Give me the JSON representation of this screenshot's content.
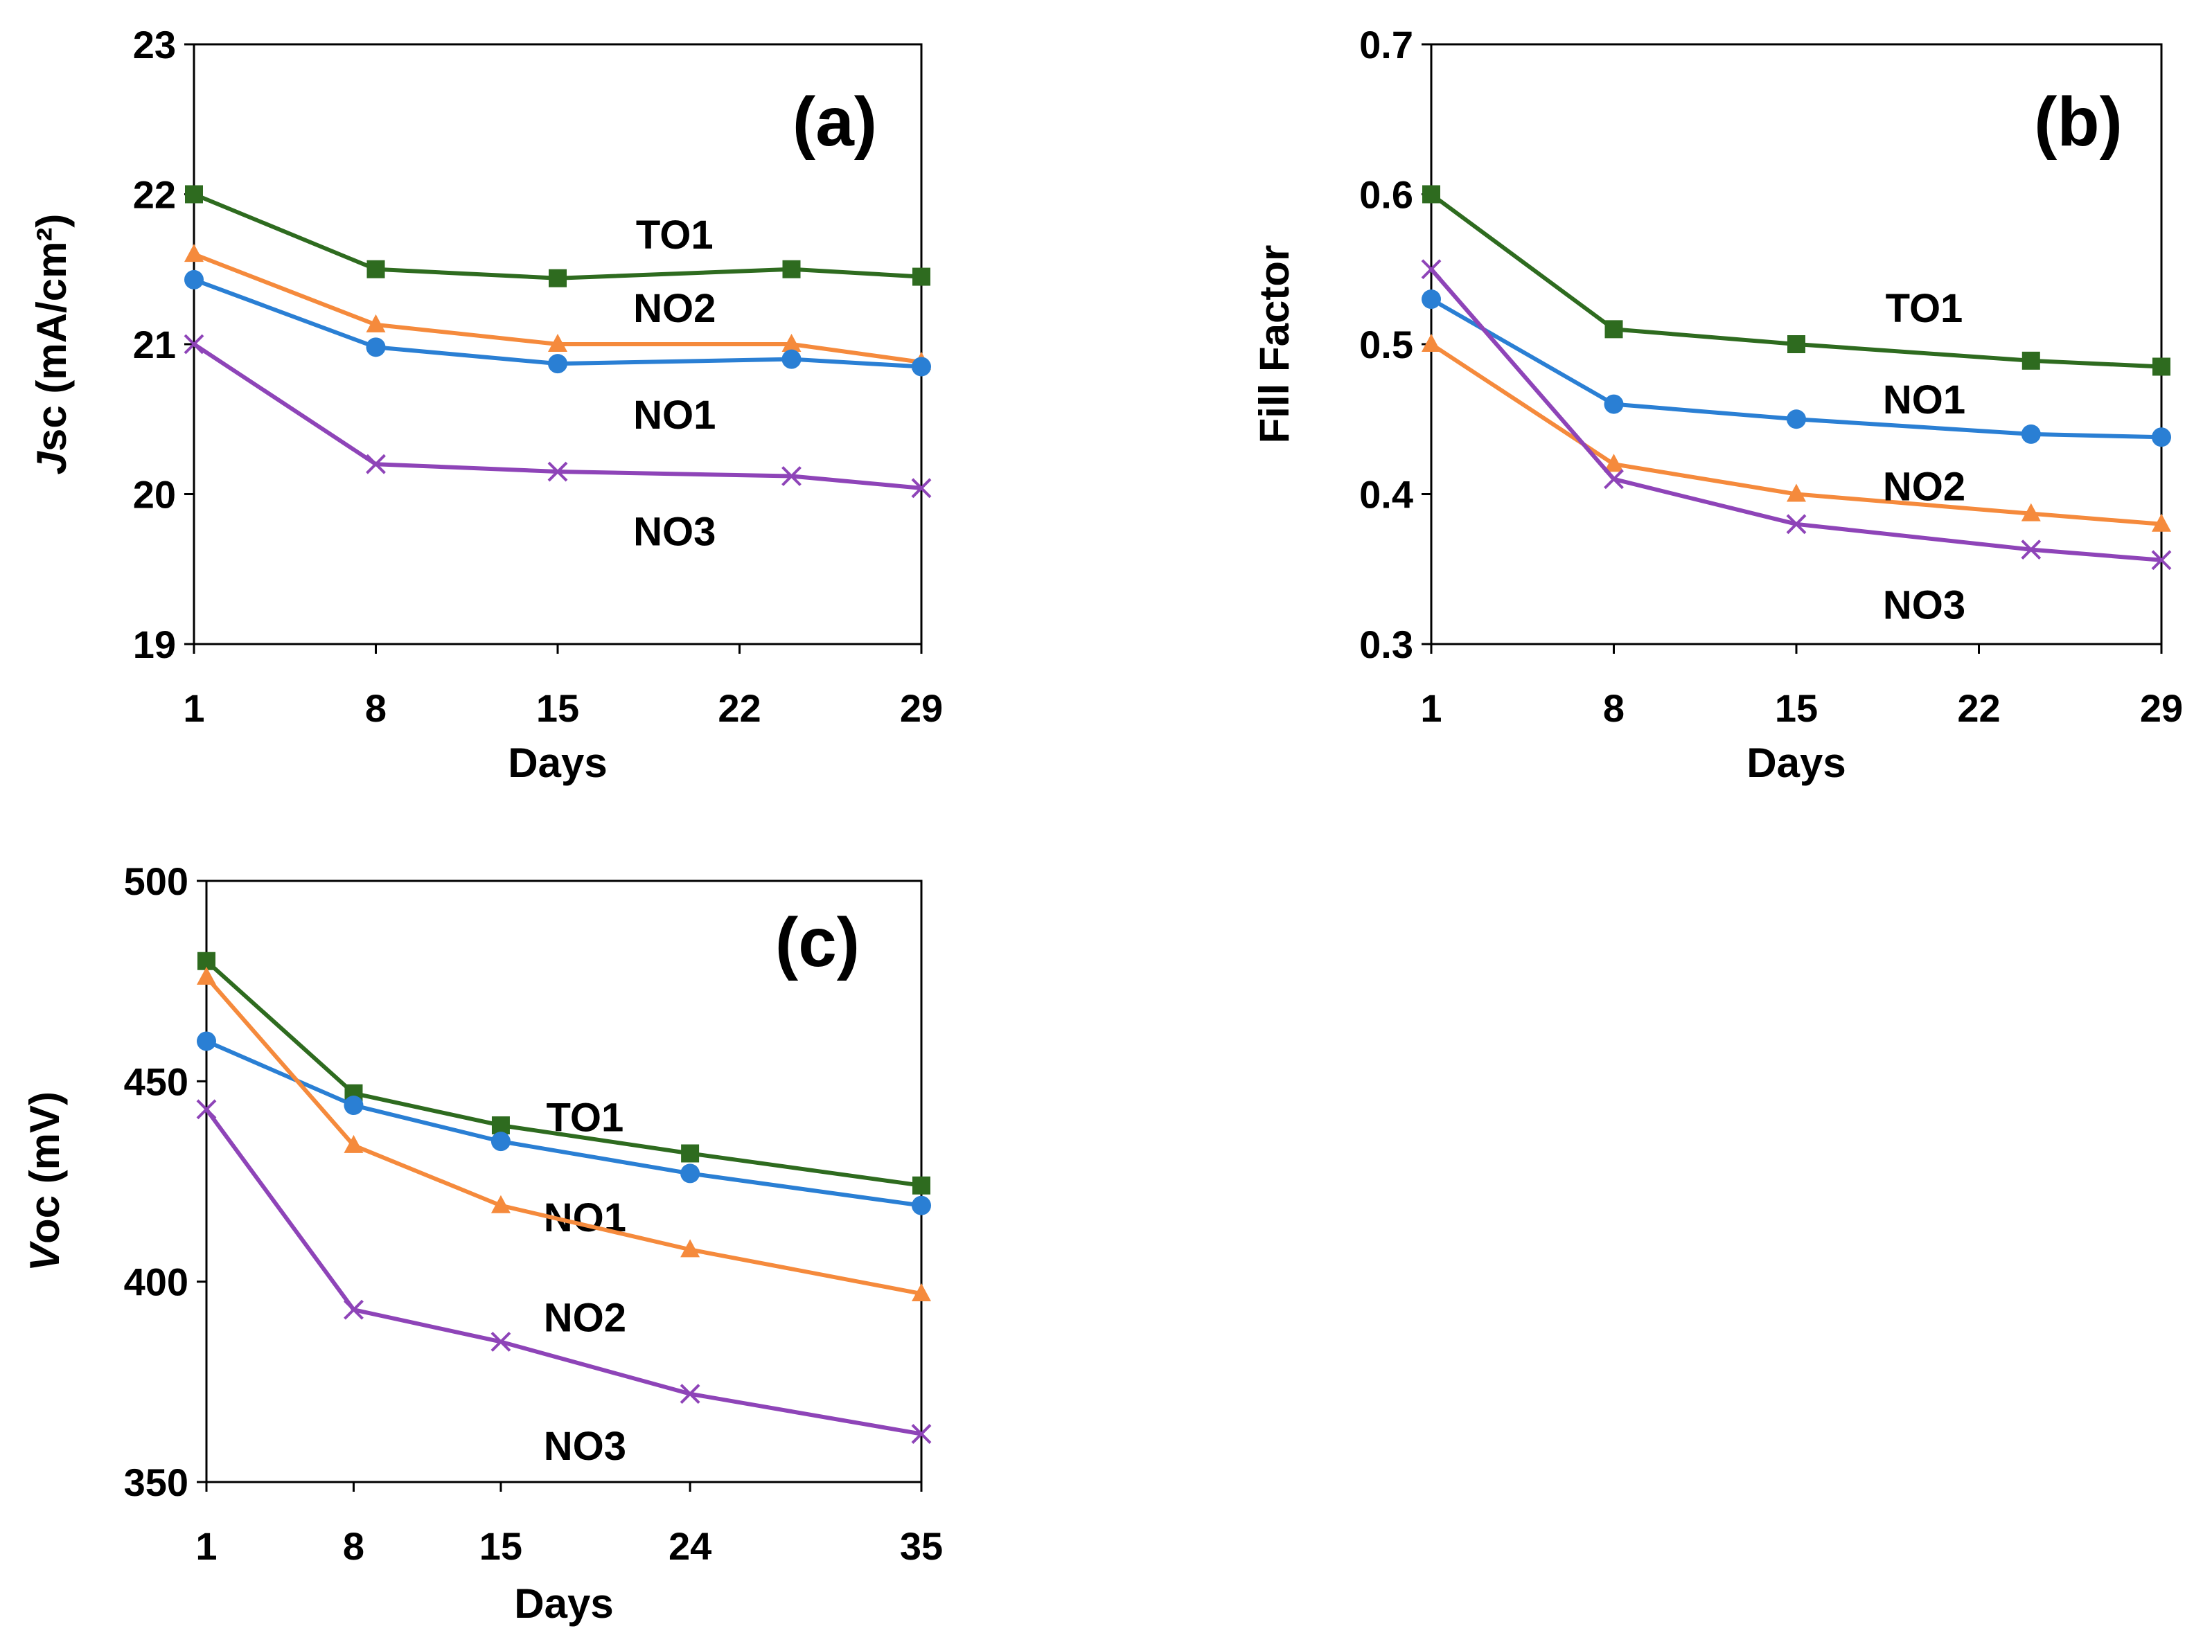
{
  "chart_data": [
    {
      "panel": "(a)",
      "type": "line",
      "xlabel": "Days",
      "ylabel_italic": "J",
      "ylabel_rest": "sc (mA/cm²)",
      "ylim": [
        19,
        23
      ],
      "yticks": [
        19,
        20,
        21,
        22,
        23
      ],
      "ytick_labels": [
        "19",
        "20",
        "21",
        "22",
        "23"
      ],
      "xlim": [
        1,
        29
      ],
      "xticks": [
        1,
        8,
        15,
        22,
        29
      ],
      "xtick_labels": [
        "1",
        "8",
        "15",
        "22",
        "29"
      ],
      "x": [
        1,
        8,
        15,
        24,
        29
      ],
      "series": [
        {
          "name": "TO1",
          "color": "#2e6b1f",
          "marker": "square",
          "values": [
            22.0,
            21.5,
            21.44,
            21.5,
            21.45
          ],
          "label_at": [
            19.5,
            21.73
          ]
        },
        {
          "name": "NO2",
          "color": "#f58a3c",
          "marker": "triangle",
          "values": [
            21.6,
            21.13,
            21.0,
            21.0,
            20.88
          ],
          "label_at": [
            19.5,
            21.24
          ]
        },
        {
          "name": "NO1",
          "color": "#2a7fd4",
          "marker": "circle",
          "values": [
            21.43,
            20.98,
            20.87,
            20.9,
            20.85
          ],
          "label_at": [
            19.5,
            20.53
          ]
        },
        {
          "name": "NO3",
          "color": "#8e44b8",
          "marker": "x",
          "values": [
            21.0,
            20.2,
            20.15,
            20.12,
            20.04
          ],
          "label_at": [
            19.5,
            19.75
          ]
        }
      ]
    },
    {
      "panel": "(b)",
      "type": "line",
      "xlabel": "Days",
      "ylabel_italic": "",
      "ylabel_rest": "Fill Factor",
      "ylim": [
        0.3,
        0.7
      ],
      "yticks": [
        0.3,
        0.4,
        0.5,
        0.6,
        0.7
      ],
      "ytick_labels": [
        "0.3",
        "0.4",
        "0.5",
        "0.6",
        "0.7"
      ],
      "xlim": [
        1,
        29
      ],
      "xticks": [
        1,
        8,
        15,
        22,
        29
      ],
      "xtick_labels": [
        "1",
        "8",
        "15",
        "22",
        "29"
      ],
      "x": [
        1,
        8,
        15,
        24,
        29
      ],
      "series": [
        {
          "name": "TO1",
          "color": "#2e6b1f",
          "marker": "square",
          "values": [
            0.6,
            0.51,
            0.5,
            0.489,
            0.485
          ],
          "label_at": [
            19.9,
            0.524
          ]
        },
        {
          "name": "NO1",
          "color": "#2a7fd4",
          "marker": "circle",
          "values": [
            0.53,
            0.46,
            0.45,
            0.44,
            0.438
          ],
          "label_at": [
            19.9,
            0.463
          ]
        },
        {
          "name": "NO2",
          "color": "#f58a3c",
          "marker": "triangle",
          "values": [
            0.5,
            0.42,
            0.4,
            0.387,
            0.38
          ],
          "label_at": [
            19.9,
            0.405
          ]
        },
        {
          "name": "NO3",
          "color": "#8e44b8",
          "marker": "x",
          "values": [
            0.55,
            0.41,
            0.38,
            0.363,
            0.356
          ],
          "label_at": [
            19.9,
            0.326
          ]
        }
      ]
    },
    {
      "panel": "(c)",
      "type": "line",
      "xlabel": "Days",
      "ylabel_italic": "V",
      "ylabel_rest": "oc (mV)",
      "ylim": [
        350,
        500
      ],
      "yticks": [
        350,
        400,
        450,
        500
      ],
      "ytick_labels": [
        "350",
        "400",
        "450",
        "500"
      ],
      "xlim": [
        1,
        35
      ],
      "xticks": [
        1,
        8,
        15,
        24,
        35
      ],
      "xtick_labels": [
        "1",
        "8",
        "15",
        "24",
        "35"
      ],
      "x": [
        1,
        8,
        15,
        24,
        35
      ],
      "series": [
        {
          "name": "TO1",
          "color": "#2e6b1f",
          "marker": "square",
          "values": [
            480,
            447,
            439,
            432,
            424
          ],
          "label_at": [
            19.0,
            441
          ]
        },
        {
          "name": "NO1",
          "color": "#2a7fd4",
          "marker": "circle",
          "values": [
            460,
            444,
            435,
            427,
            419
          ],
          "label_at": [
            19.0,
            416
          ]
        },
        {
          "name": "NO2",
          "color": "#f58a3c",
          "marker": "triangle",
          "values": [
            476,
            434,
            419,
            408,
            397
          ],
          "label_at": [
            19.0,
            391
          ]
        },
        {
          "name": "NO3",
          "color": "#8e44b8",
          "marker": "x",
          "values": [
            443,
            393,
            385,
            372,
            362
          ],
          "label_at": [
            19.0,
            359
          ]
        }
      ]
    }
  ]
}
